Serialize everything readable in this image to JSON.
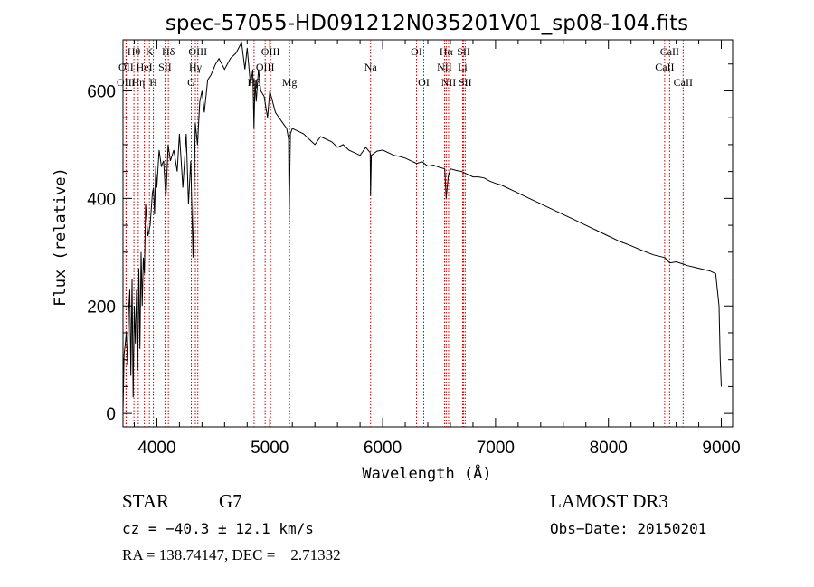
{
  "chart_data": {
    "type": "line",
    "title": "spec-57055-HD091212N035201V01_sp08-104.fits",
    "xlabel": "Wavelength (Å)",
    "ylabel": "Flux (relative)",
    "xlim": [
      3700,
      9100
    ],
    "ylim": [
      -25,
      695
    ],
    "x_ticks": [
      4000,
      5000,
      6000,
      7000,
      8000,
      9000
    ],
    "y_ticks": [
      0,
      200,
      400,
      600
    ],
    "grid": false,
    "line_color": "#000000",
    "marker_color": "#cc0000",
    "series": [
      {
        "x": [
          3700,
          3710,
          3720,
          3730,
          3740,
          3750,
          3760,
          3770,
          3780,
          3790,
          3800,
          3810,
          3820,
          3830,
          3840,
          3850,
          3860,
          3870,
          3880,
          3890,
          3900,
          3920,
          3940,
          3960,
          3970,
          3980,
          3990,
          4000,
          4020,
          4040,
          4060,
          4080,
          4100,
          4120,
          4150,
          4180,
          4200,
          4230,
          4260,
          4280,
          4300,
          4320,
          4340,
          4360,
          4380,
          4400,
          4420,
          4450,
          4480,
          4520,
          4550,
          4600,
          4650,
          4700,
          4750,
          4780,
          4800,
          4830,
          4850,
          4860,
          4870,
          4880,
          4900,
          4920,
          4950,
          4980,
          5000,
          5050,
          5100,
          5150,
          5167,
          5172,
          5183,
          5200,
          5250,
          5300,
          5350,
          5400,
          5450,
          5500,
          5550,
          5600,
          5650,
          5700,
          5750,
          5800,
          5850,
          5890,
          5893,
          5900,
          5950,
          6000,
          6050,
          6100,
          6150,
          6200,
          6250,
          6300,
          6350,
          6400,
          6450,
          6500,
          6550,
          6563,
          6580,
          6600,
          6650,
          6700,
          6750,
          6800,
          6850,
          6900,
          6950,
          7000,
          7050,
          7100,
          7150,
          7200,
          7300,
          7400,
          7500,
          7600,
          7700,
          7800,
          7900,
          8000,
          8100,
          8200,
          8300,
          8400,
          8500,
          8542,
          8600,
          8662,
          8700,
          8800,
          8900,
          8950,
          8980,
          8990,
          9000
        ],
        "y": [
          0,
          110,
          130,
          150,
          90,
          190,
          230,
          70,
          250,
          30,
          200,
          130,
          230,
          80,
          270,
          120,
          300,
          200,
          290,
          260,
          390,
          330,
          350,
          410,
          420,
          370,
          460,
          420,
          490,
          460,
          470,
          400,
          500,
          470,
          490,
          450,
          520,
          420,
          520,
          390,
          470,
          290,
          540,
          500,
          580,
          600,
          560,
          620,
          630,
          650,
          660,
          640,
          660,
          670,
          690,
          640,
          680,
          610,
          640,
          530,
          620,
          580,
          640,
          600,
          590,
          550,
          600,
          560,
          545,
          530,
          510,
          360,
          520,
          530,
          525,
          520,
          510,
          500,
          515,
          510,
          505,
          495,
          500,
          490,
          485,
          480,
          495,
          485,
          405,
          480,
          488,
          490,
          485,
          480,
          478,
          475,
          470,
          465,
          468,
          460,
          462,
          458,
          455,
          400,
          440,
          455,
          452,
          450,
          445,
          440,
          440,
          438,
          432,
          428,
          425,
          420,
          415,
          410,
          400,
          390,
          380,
          370,
          360,
          350,
          340,
          330,
          320,
          312,
          303,
          295,
          290,
          280,
          282,
          278,
          275,
          270,
          265,
          260,
          200,
          100,
          50
        ]
      }
    ],
    "line_markers": [
      {
        "label": "Hθ",
        "x": 3797,
        "row": 0
      },
      {
        "label": "OII",
        "x": 3727,
        "row": 1
      },
      {
        "label": "OIII",
        "x": 3727,
        "row": 2
      },
      {
        "label": "Hη",
        "x": 3835,
        "row": 2
      },
      {
        "label": "HeI",
        "x": 3889,
        "row": 1
      },
      {
        "label": "K",
        "x": 3934,
        "row": 0
      },
      {
        "label": "H",
        "x": 3969,
        "row": 2
      },
      {
        "label": "SII",
        "x": 4072,
        "row": 1
      },
      {
        "label": "Hδ",
        "x": 4102,
        "row": 0
      },
      {
        "label": "OIII",
        "x": 4363,
        "row": 0
      },
      {
        "label": "Hγ",
        "x": 4341,
        "row": 1
      },
      {
        "label": "G",
        "x": 4305,
        "row": 2
      },
      {
        "label": "OIII",
        "x": 5007,
        "row": 0
      },
      {
        "label": "OIII",
        "x": 4959,
        "row": 1
      },
      {
        "label": "Hβ",
        "x": 4861,
        "row": 2
      },
      {
        "label": "Mg",
        "x": 5175,
        "row": 2
      },
      {
        "label": "Na",
        "x": 5893,
        "row": 1
      },
      {
        "label": "OI",
        "x": 6300,
        "row": 0
      },
      {
        "label": "OI",
        "x": 6364,
        "row": 2
      },
      {
        "label": "Hα",
        "x": 6563,
        "row": 0
      },
      {
        "label": "NII",
        "x": 6548,
        "row": 1
      },
      {
        "label": "NII",
        "x": 6584,
        "row": 2
      },
      {
        "label": "SII",
        "x": 6717,
        "row": 0
      },
      {
        "label": "Li",
        "x": 6708,
        "row": 1
      },
      {
        "label": "SII",
        "x": 6731,
        "row": 2
      },
      {
        "label": "CaII",
        "x": 8542,
        "row": 0
      },
      {
        "label": "CaII",
        "x": 8498,
        "row": 1
      },
      {
        "label": "CaII",
        "x": 8662,
        "row": 2
      }
    ]
  },
  "info": {
    "class_label": "STAR",
    "subclass": "G7",
    "survey": "LAMOST DR3",
    "cz": "cz = −40.3 ± 12.1 km/s",
    "obs_date": "Obs−Date: 20150201",
    "radec": "RA = 138.74147, DEC =    2.71332"
  }
}
